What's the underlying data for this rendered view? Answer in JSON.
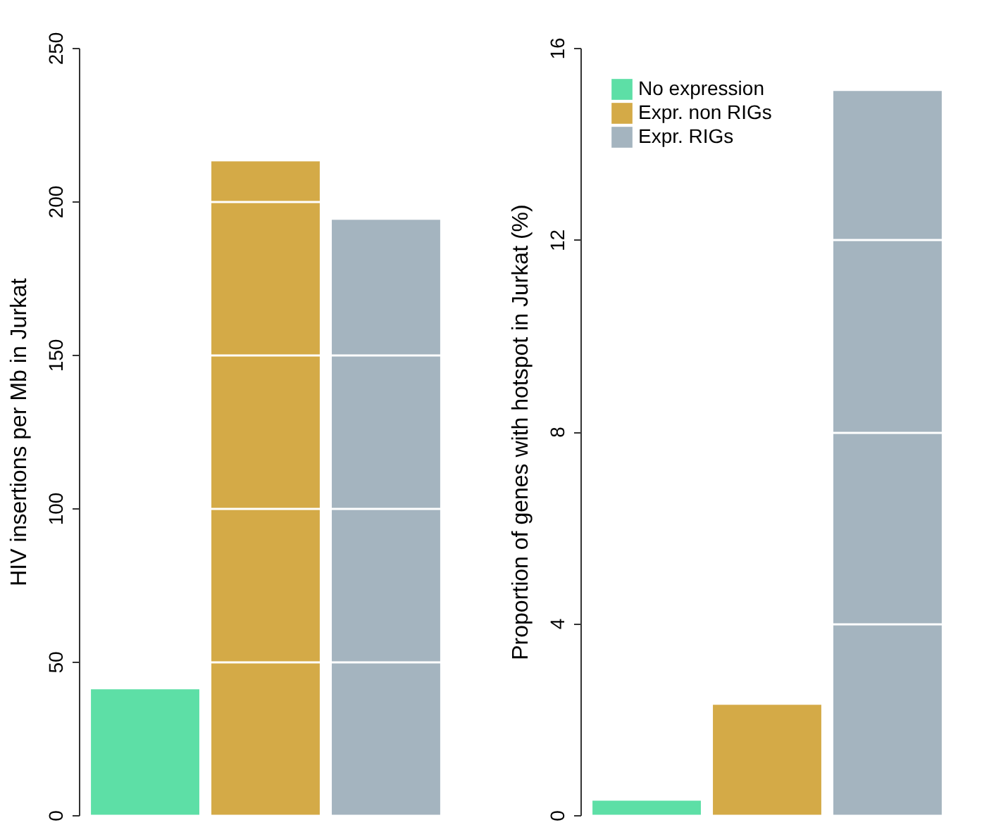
{
  "chart_data": [
    {
      "type": "bar",
      "ylabel": "HIV insertions per Mb in Jurkat",
      "categories": [
        null,
        null,
        null
      ],
      "series": [
        {
          "color": "#5ddfa6",
          "values": [
            41,
            null,
            null
          ]
        },
        {
          "color": "#d4aa47",
          "values": [
            null,
            213,
            null
          ]
        },
        {
          "color": "#a4b4bf",
          "values": [
            null,
            null,
            194
          ]
        }
      ],
      "ylim": [
        0,
        250
      ],
      "yticks": [
        0,
        50,
        100,
        150,
        200,
        250
      ],
      "grid": "y"
    },
    {
      "type": "bar",
      "ylabel": "Proportion of genes with hotspot in Jurkat (%)",
      "categories": [
        null,
        null,
        null
      ],
      "series": [
        {
          "name": "No expression",
          "color": "#5ddfa6",
          "values": [
            0.3,
            null,
            null
          ]
        },
        {
          "name": "Expr. non RIGs",
          "color": "#d4aa47",
          "values": [
            null,
            2.3,
            null
          ]
        },
        {
          "name": "Expr. RIGs",
          "color": "#a4b4bf",
          "values": [
            null,
            null,
            15.1
          ]
        }
      ],
      "ylim": [
        0,
        16
      ],
      "yticks": [
        0,
        4,
        8,
        12,
        16
      ],
      "grid": "y",
      "legend": "top left"
    }
  ]
}
